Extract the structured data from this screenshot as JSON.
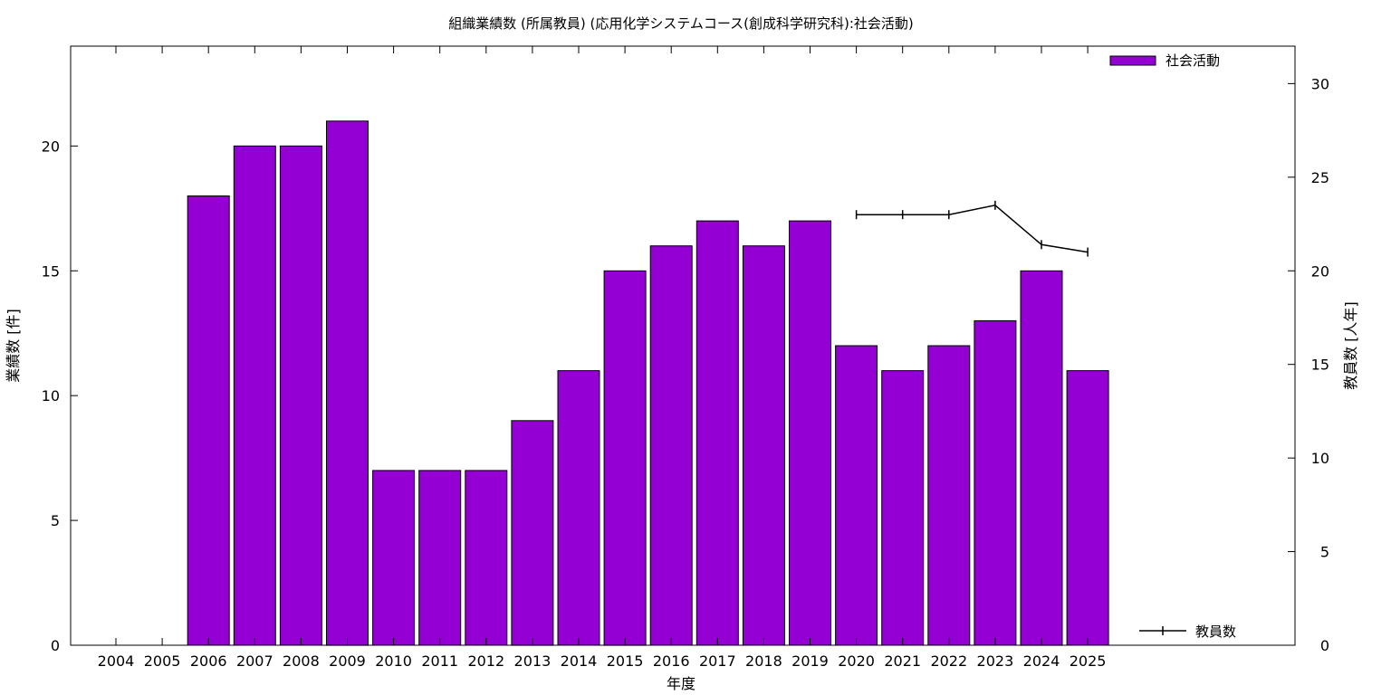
{
  "chart_data": {
    "type": "bar",
    "title": "組織業績数 (所属教員) (応用化学システムコース(創成科学研究科):社会活動)",
    "xlabel": "年度",
    "ylabel": "業績数 [件]",
    "y2label": "教員数 [人年]",
    "categories": [
      "2004",
      "2005",
      "2006",
      "2007",
      "2008",
      "2009",
      "2010",
      "2011",
      "2012",
      "2013",
      "2014",
      "2015",
      "2016",
      "2017",
      "2018",
      "2019",
      "2020",
      "2021",
      "2022",
      "2023",
      "2024",
      "2025"
    ],
    "ylim": [
      0,
      24
    ],
    "yticks": [
      0,
      5,
      10,
      15,
      20
    ],
    "y2lim": [
      0,
      32
    ],
    "y2ticks": [
      0,
      5,
      10,
      15,
      20,
      25,
      30
    ],
    "grid": false,
    "legend_position": "top-right (bars), bottom-right (line)",
    "series": [
      {
        "name": "社会活動",
        "type": "bar",
        "axis": "left",
        "color": "#9400d3",
        "values": [
          null,
          null,
          18,
          20,
          20,
          21,
          7,
          7,
          7,
          9,
          11,
          15,
          16,
          17,
          16,
          17,
          12,
          11,
          12,
          13,
          15,
          11
        ]
      },
      {
        "name": "教員数",
        "type": "line",
        "axis": "right",
        "color": "#000000",
        "values": [
          null,
          null,
          null,
          null,
          null,
          null,
          null,
          null,
          null,
          null,
          null,
          null,
          null,
          null,
          null,
          null,
          23,
          23,
          23,
          23.5,
          21.4,
          21
        ]
      }
    ]
  }
}
